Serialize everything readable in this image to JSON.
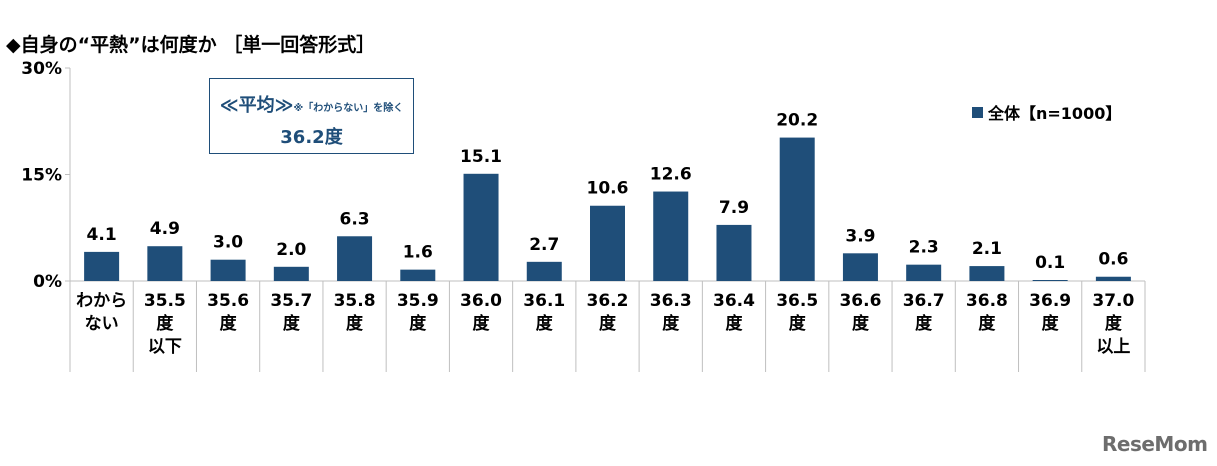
{
  "title": "◆自身の“平熱”は何度か ［単一回答形式］",
  "annotation": {
    "label_main": "≪平均≫",
    "label_note": "※「わからない」を除く",
    "value": "36.2度"
  },
  "logo": "ReseMom",
  "colors": {
    "bar": "#1f4e79",
    "axis": "#bfbfbf"
  },
  "chart_data": {
    "type": "bar",
    "categories": [
      [
        "わから",
        "ない"
      ],
      [
        "35.5",
        "度",
        "以下"
      ],
      [
        "35.6",
        "度"
      ],
      [
        "35.7",
        "度"
      ],
      [
        "35.8",
        "度"
      ],
      [
        "35.9",
        "度"
      ],
      [
        "36.0",
        "度"
      ],
      [
        "36.1",
        "度"
      ],
      [
        "36.2",
        "度"
      ],
      [
        "36.3",
        "度"
      ],
      [
        "36.4",
        "度"
      ],
      [
        "36.5",
        "度"
      ],
      [
        "36.6",
        "度"
      ],
      [
        "36.7",
        "度"
      ],
      [
        "36.8",
        "度"
      ],
      [
        "36.9",
        "度"
      ],
      [
        "37.0",
        "度",
        "以上"
      ]
    ],
    "series": [
      {
        "name": "全体【n=1000】",
        "values": [
          4.1,
          4.9,
          3.0,
          2.0,
          6.3,
          1.6,
          15.1,
          2.7,
          10.6,
          12.6,
          7.9,
          20.2,
          3.9,
          2.3,
          2.1,
          0.1,
          0.6
        ],
        "value_labels": [
          "4.1",
          "4.9",
          "3.0",
          "2.0",
          "6.3",
          "1.6",
          "15.1",
          "2.7",
          "10.6",
          "12.6",
          "7.9",
          "20.2",
          "3.9",
          "2.3",
          "2.1",
          "0.1",
          "0.6"
        ]
      }
    ],
    "ylim": [
      0,
      30
    ],
    "yticks": [
      0,
      15,
      30
    ],
    "ytick_labels": [
      "0%",
      "15%",
      "30%"
    ],
    "legend_position": "top-right",
    "grid": false
  }
}
